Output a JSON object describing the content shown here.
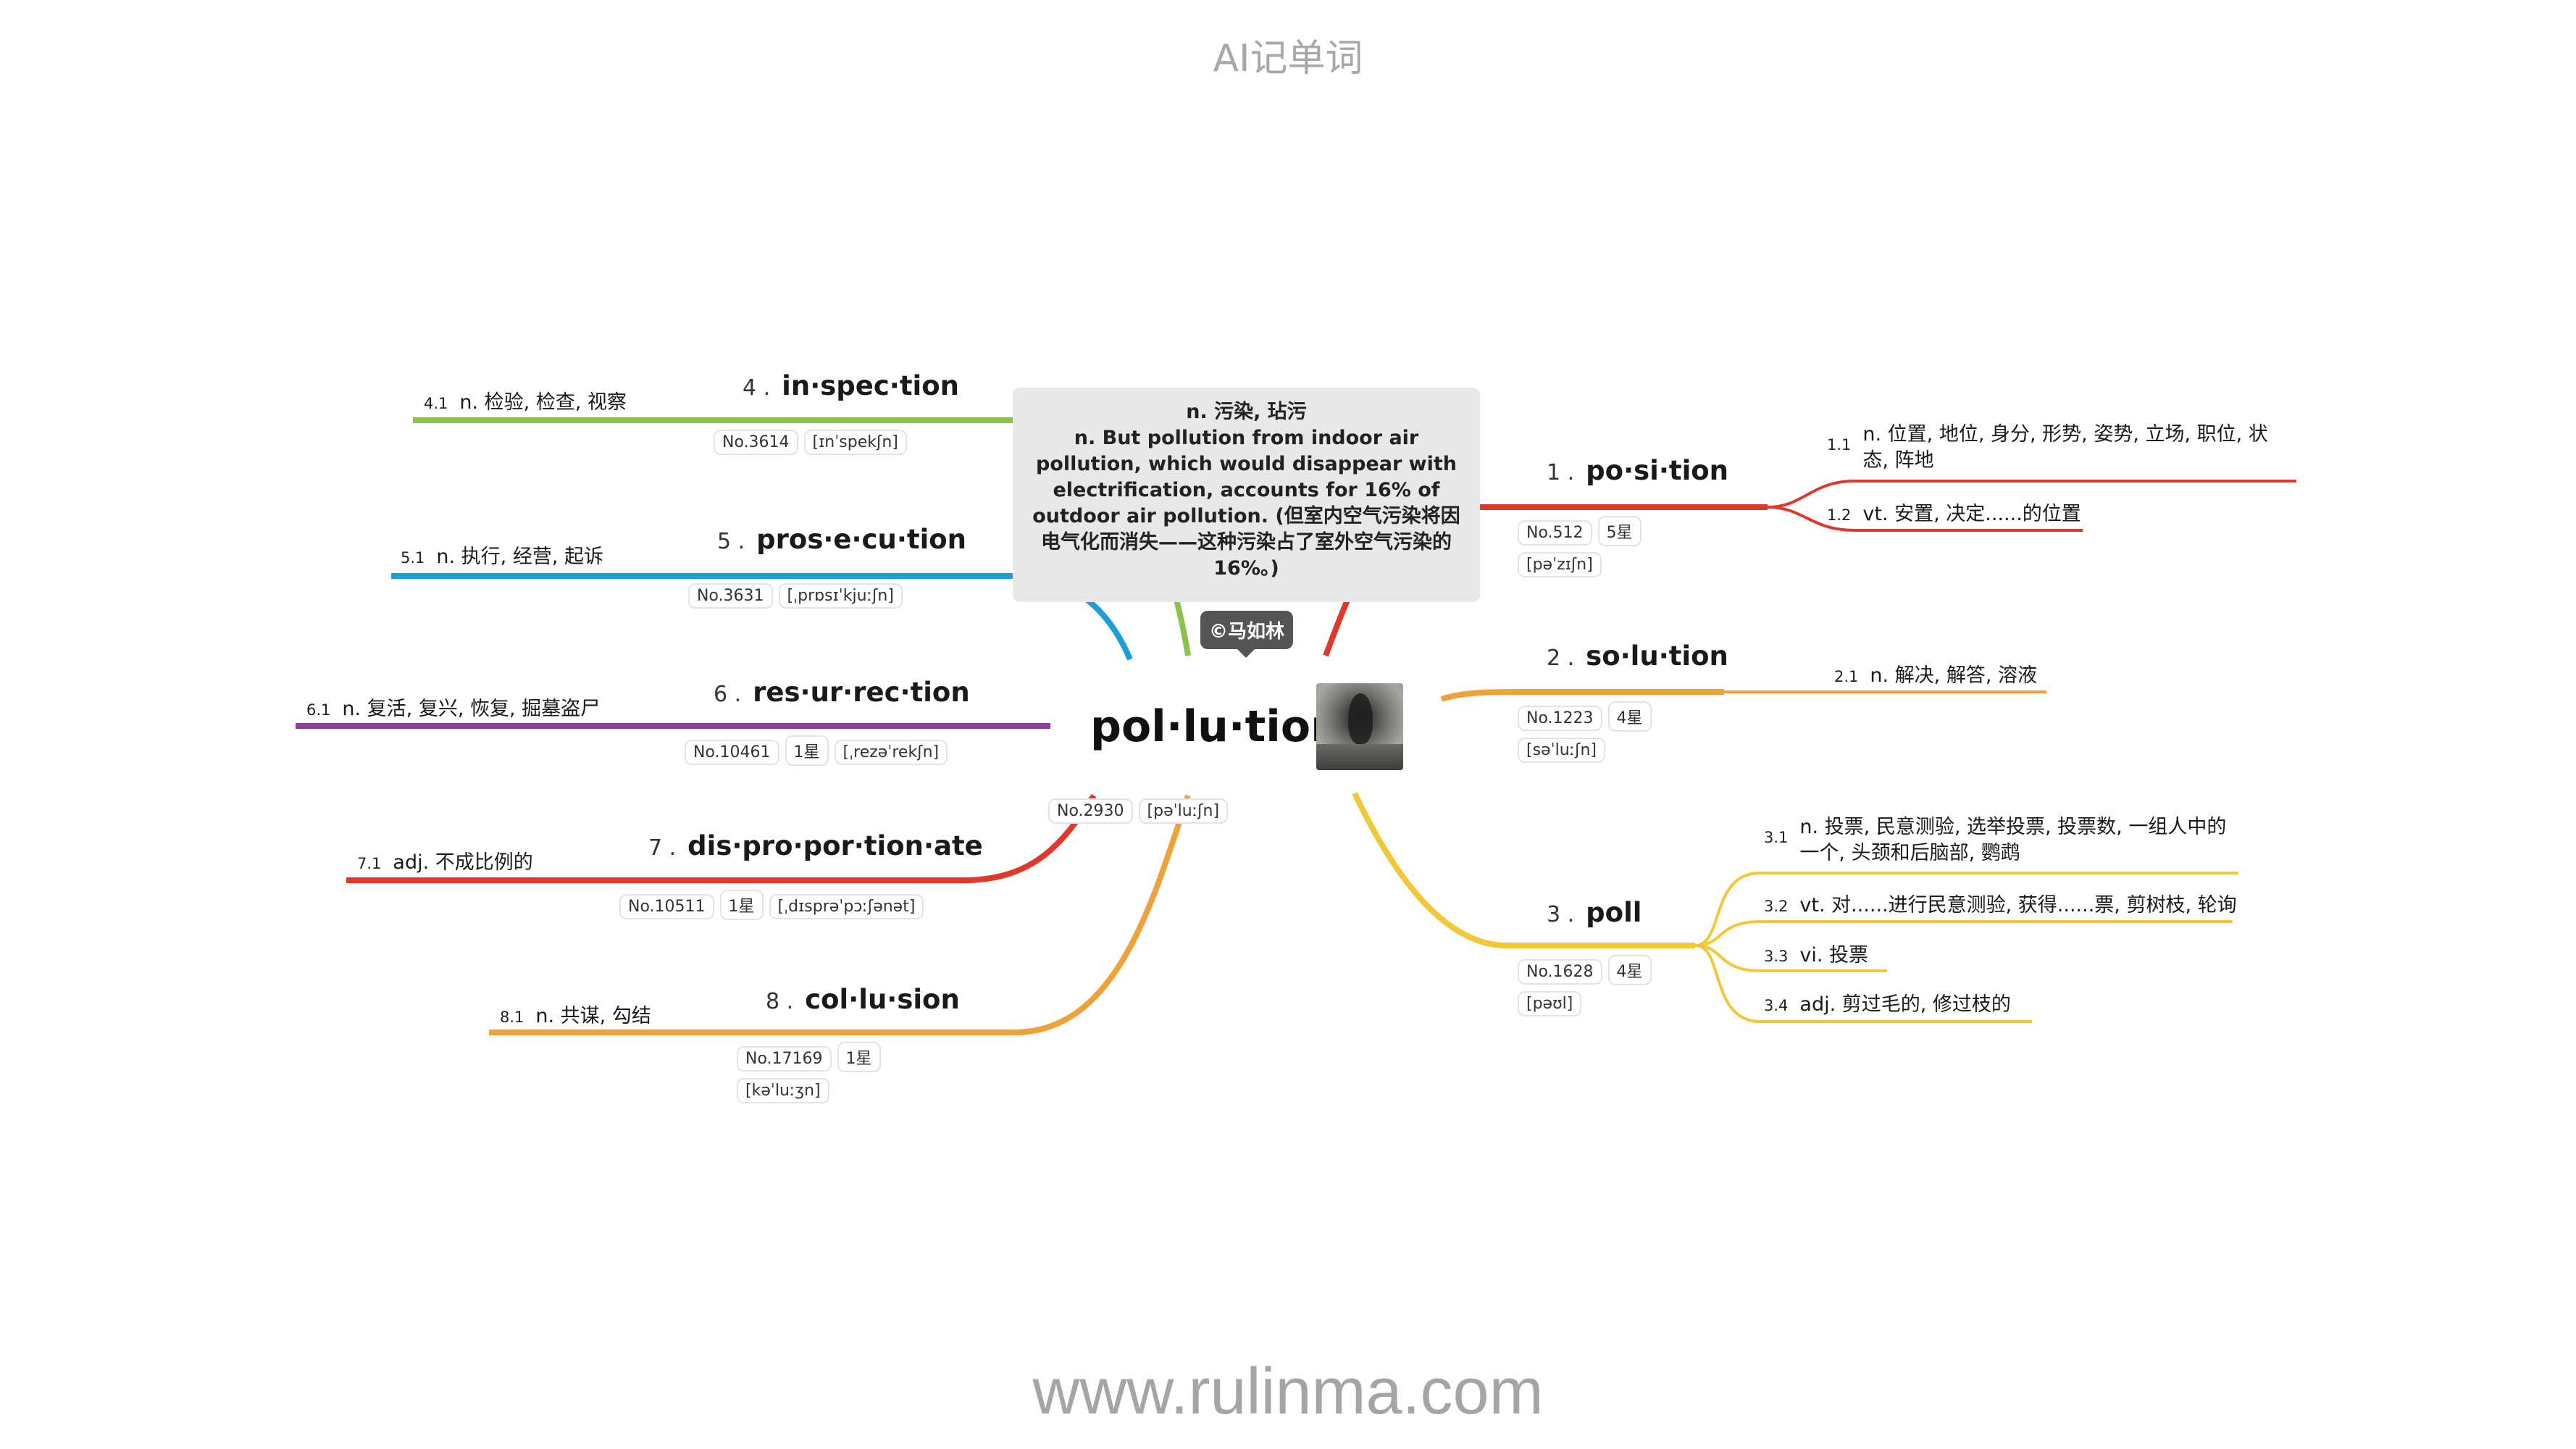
{
  "header": "AI记单词",
  "footer": "www.rulinma.com",
  "center": {
    "word": "pol·lu·tion",
    "no": "No.2930",
    "phonetic": "[pəˈluːʃn]",
    "image": "polluted-water-photo",
    "tooltip": "n. 污染, 玷污\nn. But pollution from indoor air pollution, which would disappear with electrification, accounts for 16% of outdoor air pollution. (但室内空气污染将因电气化而消失——这种污染占了室外空气污染的16%。)",
    "credit": "©马如林"
  },
  "topics": [
    {
      "num": "1 .",
      "word": "po·si·tion",
      "no": "No.512",
      "stars": "5星",
      "phonetic": "[pəˈzɪʃn]",
      "color": "#e0392b",
      "subs": [
        {
          "n": "1.1",
          "t": "n. 位置, 地位, 身分, 形势, 姿势, 立场, 职位, 状态, 阵地"
        },
        {
          "n": "1.2",
          "t": "vt. 安置, 决定......的位置"
        }
      ]
    },
    {
      "num": "2 .",
      "word": "so·lu·tion",
      "no": "No.1223",
      "stars": "4星",
      "phonetic": "[səˈluːʃn]",
      "color": "#f0a23a",
      "subs": [
        {
          "n": "2.1",
          "t": "n. 解决, 解答, 溶液"
        }
      ]
    },
    {
      "num": "3 .",
      "word": "poll",
      "no": "No.1628",
      "stars": "4星",
      "phonetic": "[pəʊl]",
      "color": "#f2c838",
      "subs": [
        {
          "n": "3.1",
          "t": "n. 投票, 民意测验, 选举投票, 投票数, 一组人中的一个, 头颈和后脑部, 鹦鹉"
        },
        {
          "n": "3.2",
          "t": "vt. 对......进行民意测验, 获得......票, 剪树枝, 轮询"
        },
        {
          "n": "3.3",
          "t": "vi. 投票"
        },
        {
          "n": "3.4",
          "t": "adj. 剪过毛的, 修过枝的"
        }
      ]
    },
    {
      "num": "4 .",
      "word": "in·spec·tion",
      "no": "No.3614",
      "stars": "",
      "phonetic": "[ɪnˈspekʃn]",
      "color": "#8bc34a",
      "subs": [
        {
          "n": "4.1",
          "t": "n. 检验, 检查, 视察"
        }
      ]
    },
    {
      "num": "5 .",
      "word": "pros·e·cu·tion",
      "no": "No.3631",
      "stars": "",
      "phonetic": "[ˌprɒsɪˈkjuːʃn]",
      "color": "#1e9ed8",
      "subs": [
        {
          "n": "5.1",
          "t": "n. 执行, 经营, 起诉"
        }
      ]
    },
    {
      "num": "6 .",
      "word": "res·ur·rec·tion",
      "no": "No.10461",
      "stars": "1星",
      "phonetic": "[ˌrezəˈrekʃn]",
      "color": "#8e3aa6",
      "subs": [
        {
          "n": "6.1",
          "t": "n. 复活, 复兴, 恢复, 掘墓盗尸"
        }
      ]
    },
    {
      "num": "7 .",
      "word": "dis·pro·por·tion·ate",
      "no": "No.10511",
      "stars": "1星",
      "phonetic": "[ˌdɪsprəˈpɔːʃənət]",
      "color": "#e0392b",
      "subs": [
        {
          "n": "7.1",
          "t": "adj. 不成比例的"
        }
      ]
    },
    {
      "num": "8 .",
      "word": "col·lu·sion",
      "no": "No.17169",
      "stars": "1星",
      "phonetic": "[kəˈluːʒn]",
      "color": "#f0a23a",
      "subs": [
        {
          "n": "8.1",
          "t": "n. 共谋, 勾结"
        }
      ]
    }
  ]
}
